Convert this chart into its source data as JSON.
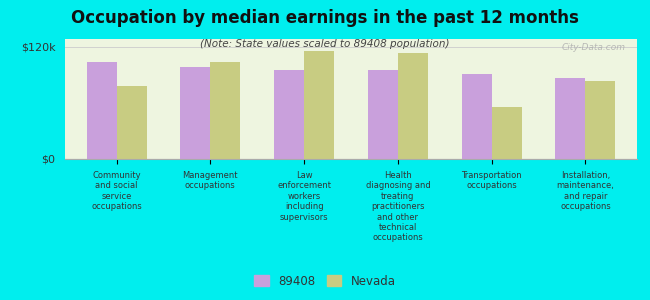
{
  "title": "Occupation by median earnings in the past 12 months",
  "subtitle": "(Note: State values scaled to 89408 population)",
  "background_color": "#00eeee",
  "plot_bg_color": "#eef5e0",
  "categories": [
    "Community\nand social\nservice\noccupations",
    "Management\noccupations",
    "Law\nenforcement\nworkers\nincluding\nsupervisors",
    "Health\ndiagnosing and\ntreating\npractitioners\nand other\ntechnical\noccupations",
    "Transportation\noccupations",
    "Installation,\nmaintenance,\nand repair\noccupations"
  ],
  "values_89408": [
    103000,
    98000,
    95000,
    95000,
    91000,
    86000
  ],
  "values_nevada": [
    78000,
    103000,
    115000,
    113000,
    55000,
    83000
  ],
  "color_89408": "#c9a0dc",
  "color_nevada": "#c8cc82",
  "legend_89408": "89408",
  "legend_nevada": "Nevada",
  "ylim": [
    0,
    128000
  ],
  "yticks": [
    0,
    120000
  ],
  "ytick_labels": [
    "$0",
    "$120k"
  ],
  "watermark": "City-Data.com"
}
